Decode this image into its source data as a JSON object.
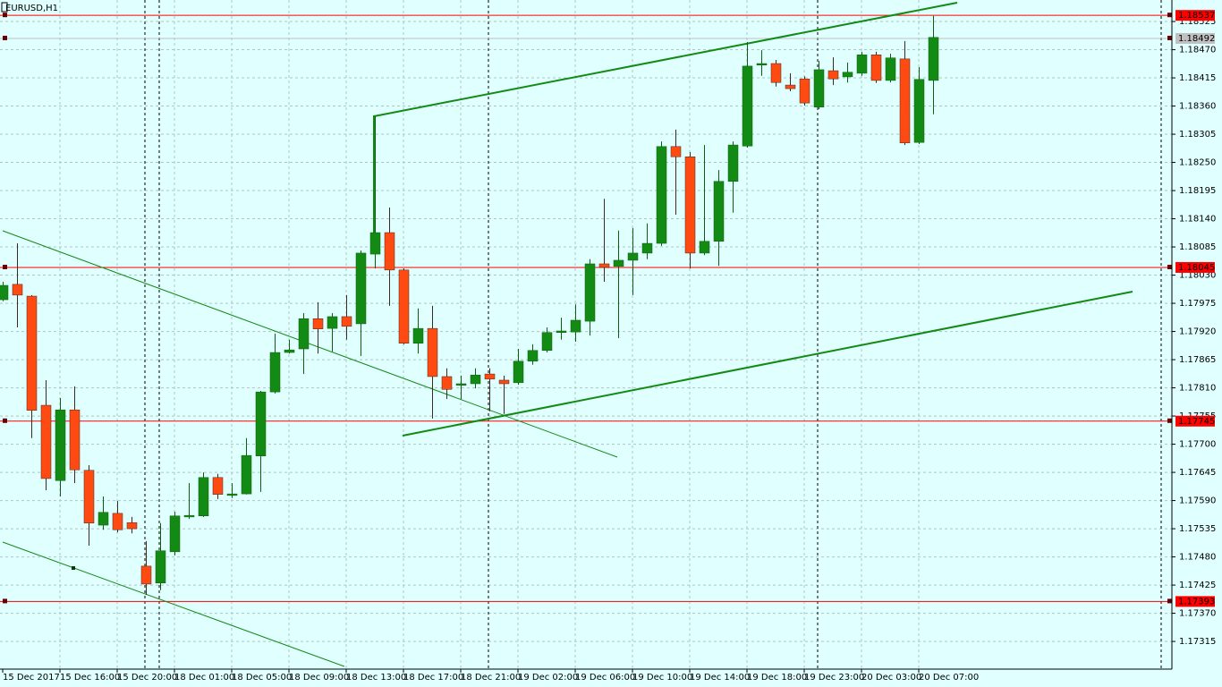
{
  "chart_data": {
    "type": "candlestick",
    "title": "EURUSD,H1",
    "categories": [
      "15 Dec 2017",
      null,
      null,
      null,
      "15 Dec 16:00",
      null,
      null,
      null,
      "15 Dec 20:00",
      null,
      null,
      null,
      "18 Dec 01:00",
      null,
      null,
      null,
      "18 Dec 05:00",
      null,
      null,
      null,
      "18 Dec 09:00",
      null,
      null,
      null,
      "18 Dec 13:00",
      null,
      null,
      null,
      "18 Dec 17:00",
      null,
      null,
      null,
      "18 Dec 21:00",
      null,
      null,
      null,
      "19 Dec 02:00",
      null,
      null,
      null,
      "19 Dec 06:00",
      null,
      null,
      null,
      "19 Dec 10:00",
      null,
      null,
      null,
      "19 Dec 14:00",
      null,
      null,
      null,
      "19 Dec 18:00",
      null,
      null,
      null,
      "19 Dec 23:00",
      null,
      null,
      null,
      "20 Dec 03:00",
      null,
      null,
      null,
      "20 Dec 07:00",
      null
    ],
    "open": [
      1.17982,
      1.18012,
      1.17989,
      1.17776,
      1.17629,
      1.17767,
      1.17649,
      1.17542,
      1.17565,
      1.17547,
      1.17462,
      1.17429,
      1.1749,
      1.17558,
      1.1756,
      1.17635,
      1.176,
      1.17603,
      1.17677,
      1.17802,
      1.17879,
      1.17886,
      1.17945,
      1.17926,
      1.17949,
      1.17935,
      1.18071,
      1.18113,
      1.1804,
      1.17897,
      1.17926,
      1.17832,
      1.17815,
      1.17818,
      1.17837,
      1.17825,
      1.1782,
      1.17862,
      1.17883,
      1.17918,
      1.17919,
      1.1794,
      1.18052,
      1.18047,
      1.18059,
      1.18073,
      1.18092,
      1.18281,
      1.18261,
      1.18073,
      1.18096,
      1.18213,
      1.18282,
      1.1844,
      1.18443,
      1.18401,
      1.18413,
      1.18358,
      1.18429,
      1.18417,
      1.18424,
      1.1846,
      1.1841,
      1.18452,
      1.18289,
      1.1841
    ],
    "high": [
      1.18017,
      1.18092,
      1.17991,
      1.17825,
      1.1779,
      1.17813,
      1.17659,
      1.17598,
      1.17589,
      1.17558,
      1.17511,
      1.17546,
      1.17568,
      1.17624,
      1.17645,
      1.17642,
      1.17624,
      1.17712,
      1.17804,
      1.17916,
      1.17904,
      1.17956,
      1.17977,
      1.17956,
      1.17991,
      1.18078,
      1.1834,
      1.18162,
      1.18043,
      1.17965,
      1.1797,
      1.17848,
      1.17834,
      1.17848,
      1.17848,
      1.17834,
      1.17886,
      1.17895,
      1.17928,
      1.17947,
      1.17973,
      1.18061,
      1.18179,
      1.18117,
      1.18122,
      1.18131,
      1.18291,
      1.18314,
      1.1827,
      1.18284,
      1.18235,
      1.18291,
      1.18485,
      1.18469,
      1.1845,
      1.18424,
      1.18418,
      1.18448,
      1.18455,
      1.18445,
      1.18466,
      1.18466,
      1.18462,
      1.18487,
      1.18436,
      1.18536
    ],
    "low": [
      1.17979,
      1.17928,
      1.17712,
      1.1761,
      1.17598,
      1.17624,
      1.17502,
      1.17533,
      1.17528,
      1.17526,
      1.17406,
      1.17415,
      1.17483,
      1.17554,
      1.17558,
      1.17593,
      1.17595,
      1.17602,
      1.17607,
      1.17799,
      1.17877,
      1.17837,
      1.17877,
      1.17881,
      1.17904,
      1.17872,
      1.18043,
      1.1797,
      1.17895,
      1.17877,
      1.1775,
      1.17788,
      1.17788,
      1.17809,
      1.17764,
      1.17759,
      1.17816,
      1.17855,
      1.17879,
      1.17904,
      1.179,
      1.17912,
      1.18017,
      1.17907,
      1.17991,
      1.18061,
      1.18087,
      1.18148,
      1.18043,
      1.18069,
      1.18048,
      1.18152,
      1.18279,
      1.18419,
      1.18398,
      1.18389,
      1.18361,
      1.18354,
      1.18401,
      1.18406,
      1.18419,
      1.18405,
      1.18406,
      1.18284,
      1.18286,
      1.18344
    ],
    "close": [
      1.1801,
      1.17991,
      1.17766,
      1.17633,
      1.17767,
      1.1765,
      1.17546,
      1.17567,
      1.17533,
      1.17535,
      1.17427,
      1.17492,
      1.1756,
      1.17561,
      1.17635,
      1.17602,
      1.17603,
      1.17678,
      1.17802,
      1.17879,
      1.17884,
      1.17945,
      1.17925,
      1.17949,
      1.1793,
      1.18073,
      1.18113,
      1.1804,
      1.17897,
      1.17926,
      1.17832,
      1.17807,
      1.17818,
      1.17835,
      1.17827,
      1.17818,
      1.17862,
      1.17883,
      1.17918,
      1.17921,
      1.17942,
      1.18052,
      1.18045,
      1.18059,
      1.18073,
      1.18092,
      1.18281,
      1.18261,
      1.18073,
      1.18096,
      1.18213,
      1.18284,
      1.18438,
      1.18443,
      1.18406,
      1.18394,
      1.18366,
      1.18431,
      1.18413,
      1.18426,
      1.1846,
      1.1841,
      1.18454,
      1.18288,
      1.18412,
      1.18494
    ],
    "up_color": "#138a13",
    "down_color": "#ff4a12",
    "ylim": [
      1.17261,
      1.18567
    ],
    "yticks": [
      1.18525,
      {
        "value": 1.1847,
        "label": "1.18470"
      },
      1.18415,
      {
        "value": 1.1836,
        "label": "1.18360"
      },
      1.18305,
      {
        "value": 1.1825,
        "label": "1.18250"
      },
      1.18195,
      {
        "value": 1.1814,
        "label": "1.18140"
      },
      1.18085,
      {
        "value": 1.1803,
        "label": "1.18030"
      },
      1.17975,
      {
        "value": 1.1792,
        "label": "1.17920"
      },
      1.17865,
      {
        "value": 1.1781,
        "label": "1.17810"
      },
      1.17755,
      {
        "value": 1.177,
        "label": "1.17700"
      },
      1.17645,
      {
        "value": 1.1759,
        "label": "1.17590"
      },
      1.17535,
      {
        "value": 1.1748,
        "label": "1.17480"
      },
      1.17425,
      {
        "value": 1.1737,
        "label": "1.17370"
      },
      1.17315
    ],
    "grid": true,
    "levels": [
      {
        "value": 1.18537,
        "color": "#ff0000"
      },
      {
        "value": 1.18492,
        "color": "#c0c0c0"
      },
      {
        "value": 1.18045,
        "color": "#ff0000"
      },
      {
        "value": 1.17745,
        "color": "#ff0000"
      },
      {
        "value": 1.17393,
        "color": "#ff0000"
      }
    ]
  }
}
